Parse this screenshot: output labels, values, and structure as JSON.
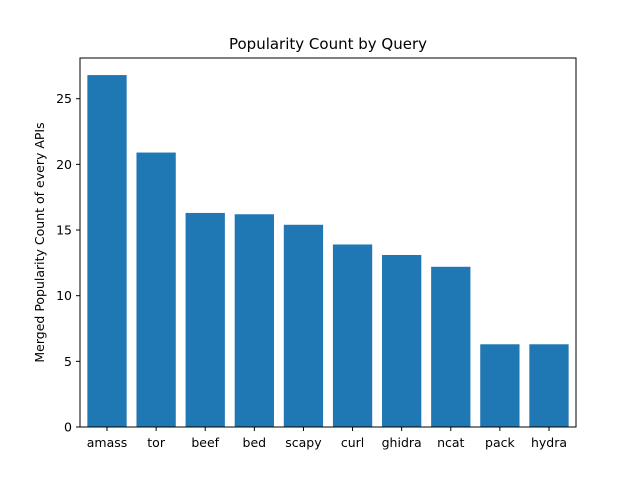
{
  "chart_data": {
    "type": "bar",
    "title": "Popularity Count by Query",
    "xlabel": "",
    "ylabel": "Merged Popularity Count of every APIs",
    "categories": [
      "amass",
      "tor",
      "beef",
      "bed",
      "scapy",
      "curl",
      "ghidra",
      "ncat",
      "pack",
      "hydra"
    ],
    "values": [
      26.8,
      20.9,
      16.3,
      16.2,
      15.4,
      13.9,
      13.1,
      12.2,
      6.3,
      6.3
    ],
    "ylim": [
      0,
      28.1
    ],
    "yticks": [
      0,
      5,
      10,
      15,
      20,
      25
    ],
    "grid": false,
    "bar_color": "#1f77b4"
  }
}
